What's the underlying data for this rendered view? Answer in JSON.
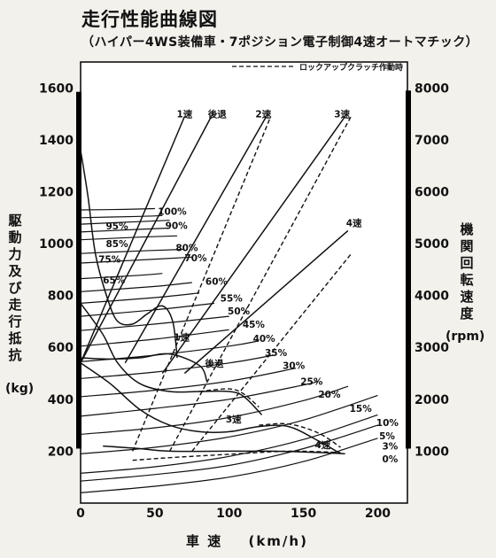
{
  "header": {
    "title": "走行性能曲線図",
    "subtitle": "（ハイパー4WS装備車・7ポジション電子制御4速オートマチック）"
  },
  "chart_data": {
    "type": "line",
    "title": "走行性能曲線図",
    "subtitle": "（ハイパー4WS装備車・7ポジション電子制御4速オートマチック）",
    "xlabel": "車 速",
    "xunit": "(km/h)",
    "ylabel_left": "駆動力 及び 走行抵抗",
    "yunit_left": "(kg)",
    "ylabel_right": "機関回転速度",
    "yunit_right": "(rpm)",
    "xlim": [
      0,
      220
    ],
    "ylim_left": [
      0,
      1700
    ],
    "ylim_right": [
      0,
      8500
    ],
    "x_ticks": [
      0,
      50,
      100,
      150,
      200
    ],
    "y_ticks_left": [
      200,
      400,
      600,
      800,
      1000,
      1200,
      1400,
      1600
    ],
    "y_ticks_right": [
      1000,
      2000,
      3000,
      4000,
      5000,
      6000,
      7000,
      8000
    ],
    "legend": {
      "dashed": "ロックアップクラッチ作動時"
    },
    "resistance_curves": [
      {
        "name": "0%",
        "points": [
          [
            0,
            40
          ],
          [
            50,
            65
          ],
          [
            100,
            100
          ],
          [
            150,
            160
          ],
          [
            200,
            250
          ]
        ]
      },
      {
        "name": "3%",
        "points": [
          [
            0,
            85
          ],
          [
            50,
            110
          ],
          [
            100,
            145
          ],
          [
            150,
            210
          ],
          [
            200,
            300
          ]
        ]
      },
      {
        "name": "5%",
        "points": [
          [
            0,
            115
          ],
          [
            50,
            140
          ],
          [
            100,
            180
          ],
          [
            150,
            245
          ],
          [
            200,
            340
          ]
        ]
      },
      {
        "name": "10%",
        "points": [
          [
            0,
            190
          ],
          [
            50,
            215
          ],
          [
            100,
            255
          ],
          [
            150,
            320
          ],
          [
            200,
            415
          ]
        ]
      },
      {
        "name": "15%",
        "points": [
          [
            0,
            265
          ],
          [
            50,
            290
          ],
          [
            100,
            330
          ],
          [
            150,
            395
          ],
          [
            180,
            450
          ]
        ]
      },
      {
        "name": "20%",
        "points": [
          [
            0,
            335
          ],
          [
            50,
            365
          ],
          [
            100,
            400
          ],
          [
            150,
            455
          ],
          [
            160,
            470
          ]
        ]
      },
      {
        "name": "25%",
        "points": [
          [
            0,
            410
          ],
          [
            50,
            435
          ],
          [
            100,
            470
          ],
          [
            145,
            520
          ]
        ]
      },
      {
        "name": "30%",
        "points": [
          [
            0,
            480
          ],
          [
            50,
            505
          ],
          [
            100,
            540
          ],
          [
            130,
            570
          ]
        ]
      },
      {
        "name": "35%",
        "points": [
          [
            0,
            545
          ],
          [
            50,
            570
          ],
          [
            100,
            605
          ],
          [
            120,
            625
          ]
        ]
      },
      {
        "name": "40%",
        "points": [
          [
            0,
            605
          ],
          [
            50,
            632
          ],
          [
            100,
            668
          ]
        ]
      },
      {
        "name": "45%",
        "points": [
          [
            0,
            665
          ],
          [
            50,
            690
          ],
          [
            100,
            720
          ]
        ]
      },
      {
        "name": "50%",
        "points": [
          [
            0,
            720
          ],
          [
            50,
            745
          ],
          [
            90,
            770
          ]
        ]
      },
      {
        "name": "55%",
        "points": [
          [
            0,
            770
          ],
          [
            50,
            792
          ],
          [
            80,
            810
          ]
        ]
      },
      {
        "name": "60%",
        "points": [
          [
            0,
            815
          ],
          [
            50,
            835
          ],
          [
            75,
            850
          ]
        ]
      },
      {
        "name": "65%",
        "points": [
          [
            0,
            865
          ],
          [
            40,
            878
          ],
          [
            55,
            885
          ]
        ]
      },
      {
        "name": "70%",
        "points": [
          [
            0,
            925
          ],
          [
            50,
            940
          ],
          [
            75,
            948
          ]
        ]
      },
      {
        "name": "75%",
        "points": [
          [
            0,
            962
          ],
          [
            40,
            972
          ],
          [
            70,
            978
          ]
        ]
      },
      {
        "name": "80%",
        "points": [
          [
            0,
            1015
          ],
          [
            40,
            1025
          ],
          [
            65,
            1030
          ]
        ]
      },
      {
        "name": "85%",
        "points": [
          [
            0,
            1045
          ],
          [
            40,
            1055
          ],
          [
            60,
            1060
          ]
        ]
      },
      {
        "name": "90%",
        "points": [
          [
            0,
            1075
          ],
          [
            40,
            1085
          ],
          [
            60,
            1090
          ]
        ]
      },
      {
        "name": "95%",
        "points": [
          [
            0,
            1100
          ],
          [
            40,
            1105
          ],
          [
            55,
            1108
          ]
        ]
      },
      {
        "name": "100%",
        "points": [
          [
            0,
            1130
          ],
          [
            30,
            1132
          ],
          [
            50,
            1135
          ]
        ]
      }
    ],
    "resistance_labels": [
      {
        "text": "100%",
        "at": [
          52,
          1125
        ]
      },
      {
        "text": "95%",
        "at": [
          17,
          1068
        ]
      },
      {
        "text": "90%",
        "at": [
          57,
          1070
        ]
      },
      {
        "text": "85%",
        "at": [
          17,
          1000
        ]
      },
      {
        "text": "80%",
        "at": [
          64,
          985
        ]
      },
      {
        "text": "75%",
        "at": [
          12,
          940
        ]
      },
      {
        "text": "70%",
        "at": [
          70,
          945
        ]
      },
      {
        "text": "65%",
        "at": [
          15,
          860
        ]
      },
      {
        "text": "60%",
        "at": [
          84,
          855
        ]
      },
      {
        "text": "55%",
        "at": [
          94,
          790
        ]
      },
      {
        "text": "50%",
        "at": [
          99,
          740
        ]
      },
      {
        "text": "45%",
        "at": [
          109,
          690
        ]
      },
      {
        "text": "40%",
        "at": [
          116,
          635
        ]
      },
      {
        "text": "35%",
        "at": [
          124,
          580
        ]
      },
      {
        "text": "30%",
        "at": [
          136,
          530
        ]
      },
      {
        "text": "25%",
        "at": [
          148,
          470
        ]
      },
      {
        "text": "20%",
        "at": [
          160,
          420
        ]
      },
      {
        "text": "15%",
        "at": [
          181,
          365
        ]
      },
      {
        "text": "10%",
        "at": [
          199,
          310
        ]
      },
      {
        "text": "5%",
        "at": [
          201,
          260
        ]
      },
      {
        "text": "3%",
        "at": [
          203,
          220
        ]
      },
      {
        "text": "0%",
        "at": [
          203,
          170
        ]
      }
    ],
    "driving_force_curves": [
      {
        "name": "1速",
        "points": [
          [
            0,
            1360
          ],
          [
            5,
            1180
          ],
          [
            10,
            960
          ],
          [
            18,
            790
          ],
          [
            25,
            700
          ],
          [
            35,
            690
          ],
          [
            45,
            730
          ],
          [
            55,
            760
          ],
          [
            62,
            700
          ],
          [
            65,
            560
          ]
        ]
      },
      {
        "name": "後退",
        "points": [
          [
            0,
            560
          ],
          [
            20,
            555
          ],
          [
            40,
            560
          ],
          [
            60,
            575
          ],
          [
            80,
            530
          ],
          [
            85,
            470
          ]
        ]
      },
      {
        "name": "2速",
        "points": [
          [
            0,
            770
          ],
          [
            15,
            650
          ],
          [
            25,
            540
          ],
          [
            40,
            460
          ],
          [
            60,
            430
          ],
          [
            80,
            430
          ],
          [
            100,
            430
          ],
          [
            110,
            410
          ],
          [
            122,
            340
          ]
        ]
      },
      {
        "name": "3速",
        "points": [
          [
            0,
            540
          ],
          [
            20,
            460
          ],
          [
            40,
            360
          ],
          [
            60,
            300
          ],
          [
            80,
            275
          ],
          [
            100,
            275
          ],
          [
            120,
            295
          ],
          [
            140,
            295
          ],
          [
            160,
            240
          ],
          [
            175,
            190
          ]
        ]
      },
      {
        "name": "4速",
        "points": [
          [
            15,
            220
          ],
          [
            40,
            210
          ],
          [
            60,
            200
          ],
          [
            100,
            200
          ],
          [
            130,
            200
          ],
          [
            160,
            195
          ],
          [
            178,
            190
          ]
        ]
      }
    ],
    "driving_force_lockup": [
      {
        "name": "2速",
        "points": [
          [
            80,
            430
          ],
          [
            100,
            440
          ],
          [
            110,
            420
          ],
          [
            120,
            370
          ]
        ]
      },
      {
        "name": "3速",
        "points": [
          [
            120,
            300
          ],
          [
            140,
            305
          ],
          [
            160,
            270
          ],
          [
            175,
            215
          ]
        ]
      },
      {
        "name": "4速",
        "points": [
          [
            35,
            165
          ],
          [
            60,
            175
          ],
          [
            100,
            188
          ],
          [
            140,
            200
          ],
          [
            175,
            195
          ]
        ]
      }
    ],
    "engine_speed_lines": [
      {
        "name": "1速",
        "points": [
          [
            0,
            540
          ],
          [
            70,
            1490
          ]
        ]
      },
      {
        "name": "後退",
        "points": [
          [
            0,
            540
          ],
          [
            88,
            1490
          ]
        ]
      },
      {
        "name": "2速",
        "points": [
          [
            30,
            540
          ],
          [
            125,
            1490
          ]
        ]
      },
      {
        "name": "3速",
        "points": [
          [
            55,
            500
          ],
          [
            178,
            1490
          ]
        ]
      },
      {
        "name": "4速",
        "points": [
          [
            70,
            500
          ],
          [
            180,
            1050
          ]
        ]
      }
    ],
    "engine_speed_lockup": [
      {
        "name": "2速",
        "points": [
          [
            35,
            200
          ],
          [
            128,
            1490
          ]
        ]
      },
      {
        "name": "3速",
        "points": [
          [
            60,
            200
          ],
          [
            182,
            1490
          ]
        ]
      },
      {
        "name": "4速",
        "points": [
          [
            75,
            200
          ],
          [
            182,
            960
          ]
        ]
      }
    ],
    "gear_labels": [
      {
        "text": "1速",
        "at": [
          70,
          1500
        ]
      },
      {
        "text": "後退",
        "at": [
          92,
          1500
        ]
      },
      {
        "text": "2速",
        "at": [
          123,
          1500
        ]
      },
      {
        "text": "3速",
        "at": [
          176,
          1500
        ]
      },
      {
        "text": "4速",
        "at": [
          184,
          1080
        ]
      },
      {
        "text": "1速",
        "at": [
          68,
          640
        ]
      },
      {
        "text": "後退",
        "at": [
          90,
          540
        ]
      },
      {
        "text": "3速",
        "at": [
          103,
          325
        ]
      },
      {
        "text": "4速",
        "at": [
          163,
          225
        ]
      }
    ]
  }
}
